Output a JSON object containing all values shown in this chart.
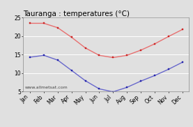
{
  "title": "Tauranga : temperatures (°C)",
  "months": [
    "Jan",
    "Feb",
    "Mar",
    "Apr",
    "May",
    "Jun",
    "Jul",
    "Aug",
    "Sep",
    "Oct",
    "Nov",
    "Dec"
  ],
  "max_temps": [
    23.5,
    23.5,
    22.3,
    19.7,
    16.8,
    14.8,
    14.2,
    14.8,
    16.2,
    17.9,
    19.9,
    21.8
  ],
  "min_temps": [
    14.3,
    14.8,
    13.5,
    10.7,
    7.9,
    5.7,
    4.9,
    6.1,
    7.8,
    9.3,
    11.0,
    12.9
  ],
  "max_color": "#e87070",
  "min_color": "#6868cc",
  "max_marker_color": "#cc2222",
  "min_marker_color": "#2222aa",
  "bg_color": "#e0e0e0",
  "grid_color": "#ffffff",
  "ylim": [
    5,
    25
  ],
  "yticks": [
    5,
    10,
    15,
    20,
    25
  ],
  "watermark": "www.allmetsat.com",
  "title_fontsize": 7.5,
  "tick_fontsize": 5.5
}
